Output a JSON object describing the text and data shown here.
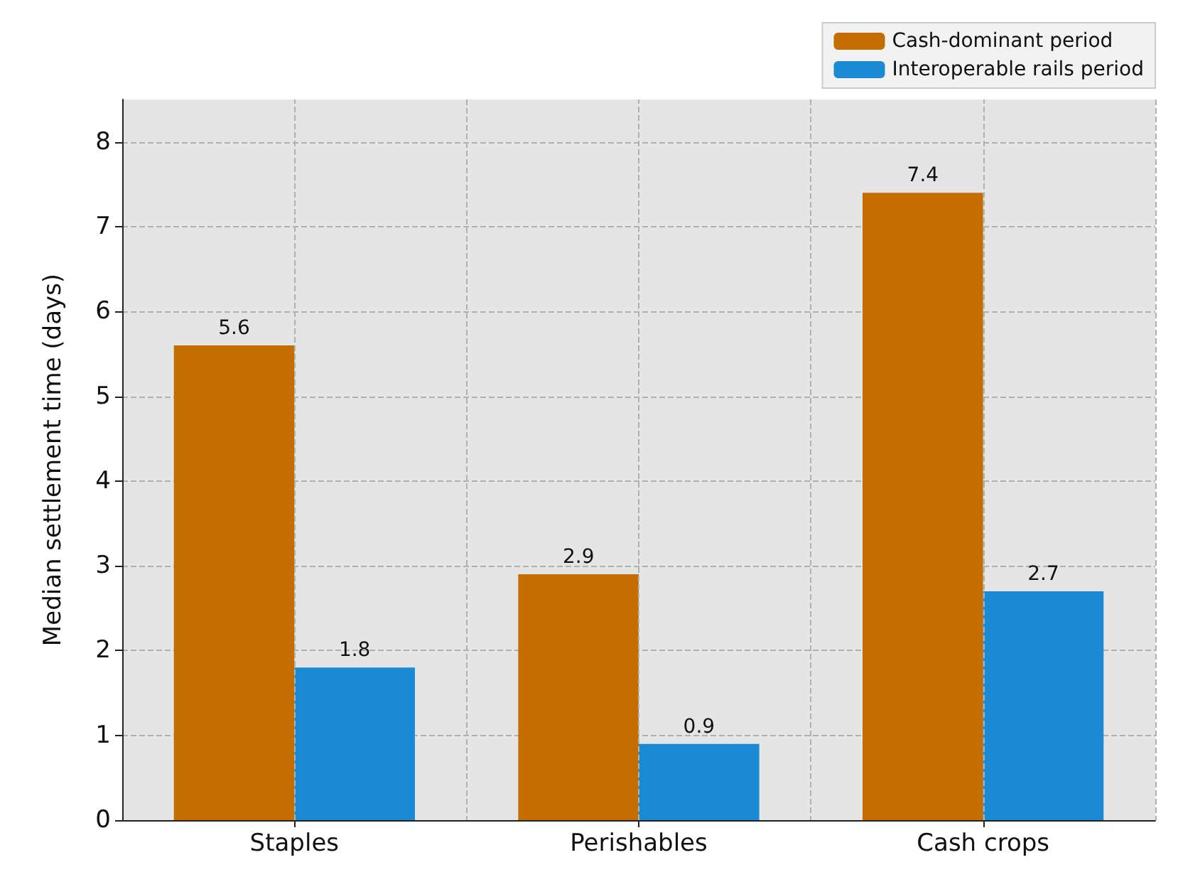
{
  "chart_data": {
    "type": "bar",
    "ylabel": "Median settlement time (days)",
    "categories": [
      "Staples",
      "Perishables",
      "Cash crops"
    ],
    "series": [
      {
        "name": "Cash-dominant period",
        "color": "#c46d00",
        "values": [
          5.6,
          2.9,
          7.4
        ]
      },
      {
        "name": "Interoperable rails period",
        "color": "#1a8ad4",
        "values": [
          1.8,
          0.9,
          2.7
        ]
      }
    ],
    "ylim": [
      0,
      8.5
    ],
    "yticks": [
      0,
      1,
      2,
      3,
      4,
      5,
      6,
      7,
      8
    ],
    "grid": true,
    "legend": "top right",
    "data_labels": true
  }
}
